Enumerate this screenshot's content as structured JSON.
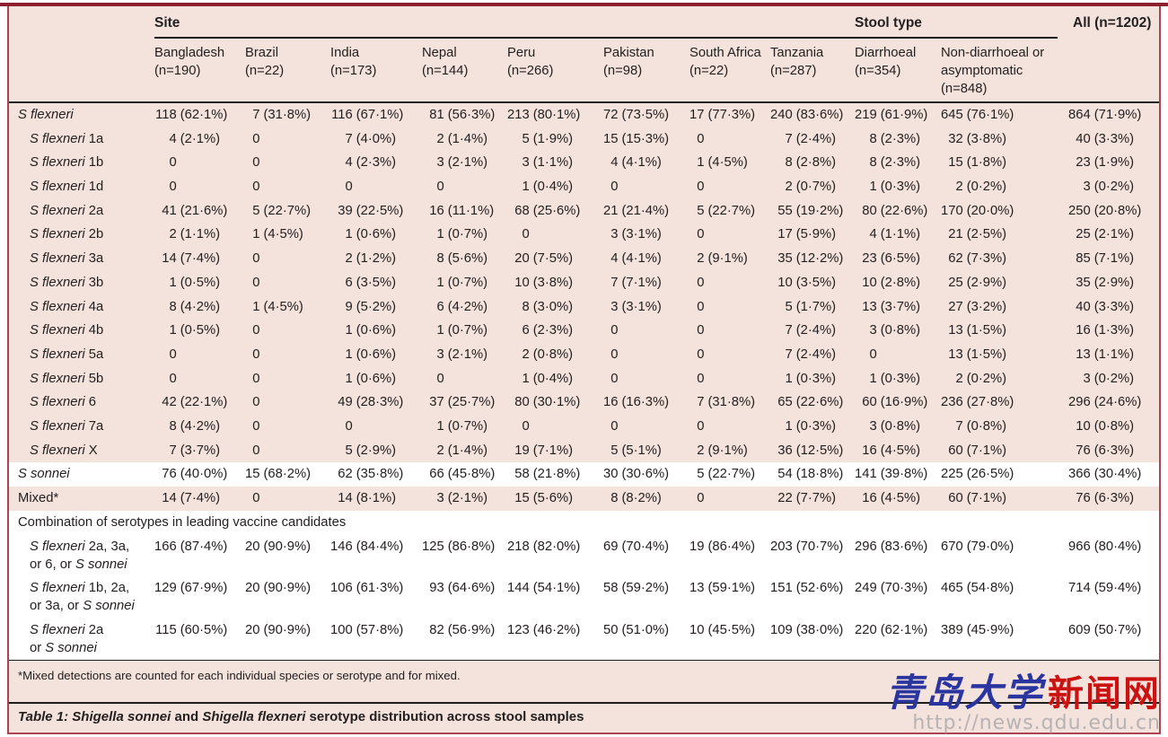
{
  "colors": {
    "panel_pink": "#f4e2dc",
    "frame_red": "#b04353",
    "top_rule_red": "#8e1f2f",
    "rule_black": "#1d1d1b",
    "highlight_white": "#ffffff",
    "watermark_blue": "#2b35a0",
    "watermark_red": "#cc1111",
    "watermark_gray": "#b7b2b4"
  },
  "header": {
    "site": "Site",
    "stool": "Stool type",
    "all": "All (n=1202)"
  },
  "columns": [
    {
      "name": "Bangladesh",
      "n": "(n=190)"
    },
    {
      "name": "Brazil",
      "n": "(n=22)"
    },
    {
      "name": "India",
      "n": "(n=173)"
    },
    {
      "name": "Nepal",
      "n": "(n=144)"
    },
    {
      "name": "Peru",
      "n": "(n=266)"
    },
    {
      "name": "Pakistan",
      "n": "(n=98)"
    },
    {
      "name": "South Africa",
      "n": "(n=22)"
    },
    {
      "name": "Tanzania",
      "n": "(n=287)"
    },
    {
      "name": "Diarrhoeal",
      "n": "(n=354)"
    },
    {
      "name": "Non-diarrhoeal or asymptomatic",
      "n": "(n=848)"
    }
  ],
  "rows": [
    {
      "type": "data",
      "bg": "pink",
      "indent": 0,
      "lines": [
        [
          [
            "S flexneri",
            true
          ]
        ]
      ],
      "cells": [
        "118 (62·1%)",
        "7 (31·8%)",
        "116 (67·1%)",
        "81 (56·3%)",
        "213 (80·1%)",
        "72 (73·5%)",
        "17 (77·3%)",
        "240 (83·6%)",
        "219 (61·9%)",
        "645 (76·1%)",
        "864 (71·9%)"
      ]
    },
    {
      "type": "data",
      "bg": "pink",
      "indent": 1,
      "lines": [
        [
          [
            "S flexneri",
            true
          ],
          [
            " 1a",
            false
          ]
        ]
      ],
      "cells": [
        "4 (2·1%)",
        "0",
        "7 (4·0%)",
        "2 (1·4%)",
        "5 (1·9%)",
        "15 (15·3%)",
        "0",
        "7 (2·4%)",
        "8 (2·3%)",
        "32 (3·8%)",
        "40 (3·3%)"
      ]
    },
    {
      "type": "data",
      "bg": "pink",
      "indent": 1,
      "lines": [
        [
          [
            "S flexneri",
            true
          ],
          [
            " 1b",
            false
          ]
        ]
      ],
      "cells": [
        "0",
        "0",
        "4 (2·3%)",
        "3 (2·1%)",
        "3 (1·1%)",
        "4 (4·1%)",
        "1 (4·5%)",
        "8 (2·8%)",
        "8 (2·3%)",
        "15 (1·8%)",
        "23 (1·9%)"
      ]
    },
    {
      "type": "data",
      "bg": "pink",
      "indent": 1,
      "lines": [
        [
          [
            "S flexneri",
            true
          ],
          [
            " 1d",
            false
          ]
        ]
      ],
      "cells": [
        "0",
        "0",
        "0",
        "0",
        "1 (0·4%)",
        "0",
        "0",
        "2 (0·7%)",
        "1 (0·3%)",
        "2 (0·2%)",
        "3 (0·2%)"
      ]
    },
    {
      "type": "data",
      "bg": "pink",
      "indent": 1,
      "lines": [
        [
          [
            "S flexneri",
            true
          ],
          [
            " 2a",
            false
          ]
        ]
      ],
      "cells": [
        "41 (21·6%)",
        "5 (22·7%)",
        "39 (22·5%)",
        "16 (11·1%)",
        "68 (25·6%)",
        "21 (21·4%)",
        "5 (22·7%)",
        "55 (19·2%)",
        "80 (22·6%)",
        "170 (20·0%)",
        "250 (20·8%)"
      ]
    },
    {
      "type": "data",
      "bg": "pink",
      "indent": 1,
      "lines": [
        [
          [
            "S flexneri",
            true
          ],
          [
            " 2b",
            false
          ]
        ]
      ],
      "cells": [
        "2 (1·1%)",
        "1 (4·5%)",
        "1 (0·6%)",
        "1 (0·7%)",
        "0",
        "3 (3·1%)",
        "0",
        "17 (5·9%)",
        "4 (1·1%)",
        "21 (2·5%)",
        "25 (2·1%)"
      ]
    },
    {
      "type": "data",
      "bg": "pink",
      "indent": 1,
      "lines": [
        [
          [
            "S flexneri",
            true
          ],
          [
            " 3a",
            false
          ]
        ]
      ],
      "cells": [
        "14 (7·4%)",
        "0",
        "2 (1·2%)",
        "8 (5·6%)",
        "20 (7·5%)",
        "4 (4·1%)",
        "2 (9·1%)",
        "35 (12·2%)",
        "23 (6·5%)",
        "62 (7·3%)",
        "85 (7·1%)"
      ]
    },
    {
      "type": "data",
      "bg": "pink",
      "indent": 1,
      "lines": [
        [
          [
            "S flexneri",
            true
          ],
          [
            " 3b",
            false
          ]
        ]
      ],
      "cells": [
        "1 (0·5%)",
        "0",
        "6 (3·5%)",
        "1 (0·7%)",
        "10 (3·8%)",
        "7 (7·1%)",
        "0",
        "10 (3·5%)",
        "10 (2·8%)",
        "25 (2·9%)",
        "35 (2·9%)"
      ]
    },
    {
      "type": "data",
      "bg": "pink",
      "indent": 1,
      "lines": [
        [
          [
            "S flexneri",
            true
          ],
          [
            " 4a",
            false
          ]
        ]
      ],
      "cells": [
        "8 (4·2%)",
        "1 (4·5%)",
        "9 (5·2%)",
        "6 (4·2%)",
        "8 (3·0%)",
        "3 (3·1%)",
        "0",
        "5 (1·7%)",
        "13 (3·7%)",
        "27 (3·2%)",
        "40 (3·3%)"
      ]
    },
    {
      "type": "data",
      "bg": "pink",
      "indent": 1,
      "lines": [
        [
          [
            "S flexneri",
            true
          ],
          [
            " 4b",
            false
          ]
        ]
      ],
      "cells": [
        "1 (0·5%)",
        "0",
        "1 (0·6%)",
        "1 (0·7%)",
        "6 (2·3%)",
        "0",
        "0",
        "7 (2·4%)",
        "3 (0·8%)",
        "13 (1·5%)",
        "16 (1·3%)"
      ]
    },
    {
      "type": "data",
      "bg": "pink",
      "indent": 1,
      "lines": [
        [
          [
            "S flexneri",
            true
          ],
          [
            " 5a",
            false
          ]
        ]
      ],
      "cells": [
        "0",
        "0",
        "1 (0·6%)",
        "3 (2·1%)",
        "2 (0·8%)",
        "0",
        "0",
        "7 (2·4%)",
        "0",
        "13 (1·5%)",
        "13 (1·1%)"
      ]
    },
    {
      "type": "data",
      "bg": "pink",
      "indent": 1,
      "lines": [
        [
          [
            "S flexneri",
            true
          ],
          [
            " 5b",
            false
          ]
        ]
      ],
      "cells": [
        "0",
        "0",
        "1 (0·6%)",
        "0",
        "1 (0·4%)",
        "0",
        "0",
        "1 (0·3%)",
        "1 (0·3%)",
        "2 (0·2%)",
        "3 (0·2%)"
      ]
    },
    {
      "type": "data",
      "bg": "pink",
      "indent": 1,
      "lines": [
        [
          [
            "S flexneri",
            true
          ],
          [
            " 6",
            false
          ]
        ]
      ],
      "cells": [
        "42 (22·1%)",
        "0",
        "49 (28·3%)",
        "37 (25·7%)",
        "80 (30·1%)",
        "16 (16·3%)",
        "7 (31·8%)",
        "65 (22·6%)",
        "60 (16·9%)",
        "236 (27·8%)",
        "296 (24·6%)"
      ]
    },
    {
      "type": "data",
      "bg": "pink",
      "indent": 1,
      "lines": [
        [
          [
            "S flexneri",
            true
          ],
          [
            " 7a",
            false
          ]
        ]
      ],
      "cells": [
        "8 (4·2%)",
        "0",
        "0",
        "1 (0·7%)",
        "0",
        "0",
        "0",
        "1 (0·3%)",
        "3 (0·8%)",
        "7 (0·8%)",
        "10 (0·8%)"
      ]
    },
    {
      "type": "data",
      "bg": "pink",
      "indent": 1,
      "lines": [
        [
          [
            "S flexneri",
            true
          ],
          [
            " X",
            false
          ]
        ]
      ],
      "cells": [
        "7 (3·7%)",
        "0",
        "5 (2·9%)",
        "2 (1·4%)",
        "19 (7·1%)",
        "5 (5·1%)",
        "2 (9·1%)",
        "36 (12·5%)",
        "16 (4·5%)",
        "60 (7·1%)",
        "76 (6·3%)"
      ]
    },
    {
      "type": "data",
      "bg": "white",
      "indent": 0,
      "lines": [
        [
          [
            "S sonnei",
            true
          ]
        ]
      ],
      "cells": [
        "76 (40·0%)",
        "15 (68·2%)",
        "62 (35·8%)",
        "66 (45·8%)",
        "58 (21·8%)",
        "30 (30·6%)",
        "5 (22·7%)",
        "54 (18·8%)",
        "141 (39·8%)",
        "225 (26·5%)",
        "366 (30·4%)"
      ]
    },
    {
      "type": "data",
      "bg": "pink",
      "indent": 0,
      "lines": [
        [
          [
            "Mixed*",
            false
          ]
        ]
      ],
      "cells": [
        "14 (7·4%)",
        "0",
        "14 (8·1%)",
        "3 (2·1%)",
        "15 (5·6%)",
        "8 (8·2%)",
        "0",
        "22 (7·7%)",
        "16 (4·5%)",
        "60 (7·1%)",
        "76 (6·3%)"
      ]
    },
    {
      "type": "section",
      "bg": "white",
      "indent": 0,
      "lines": [
        [
          [
            "Combination of serotypes in leading vaccine candidates",
            false
          ]
        ]
      ],
      "cells": null
    },
    {
      "type": "data",
      "bg": "white",
      "indent": 1,
      "lines": [
        [
          [
            "S flexneri",
            true
          ],
          [
            " 2a, 3a,",
            false
          ]
        ],
        [
          [
            "or 6, or ",
            false
          ],
          [
            "S sonnei",
            true
          ]
        ]
      ],
      "cells": [
        "166 (87·4%)",
        "20 (90·9%)",
        "146 (84·4%)",
        "125 (86·8%)",
        "218 (82·0%)",
        "69 (70·4%)",
        "19 (86·4%)",
        "203 (70·7%)",
        "296 (83·6%)",
        "670 (79·0%)",
        "966 (80·4%)"
      ]
    },
    {
      "type": "data",
      "bg": "white",
      "indent": 1,
      "lines": [
        [
          [
            "S flexneri",
            true
          ],
          [
            " 1b, 2a,",
            false
          ]
        ],
        [
          [
            "or 3a, or ",
            false
          ],
          [
            "S sonnei",
            true
          ]
        ]
      ],
      "cells": [
        "129 (67·9%)",
        "20 (90·9%)",
        "106 (61·3%)",
        "93 (64·6%)",
        "144 (54·1%)",
        "58 (59·2%)",
        "13 (59·1%)",
        "151 (52·6%)",
        "249 (70·3%)",
        "465 (54·8%)",
        "714 (59·4%)"
      ]
    },
    {
      "type": "data",
      "bg": "white",
      "indent": 1,
      "lines": [
        [
          [
            "S flexneri",
            true
          ],
          [
            " 2a",
            false
          ]
        ],
        [
          [
            "or ",
            false
          ],
          [
            "S sonnei",
            true
          ]
        ]
      ],
      "cells": [
        "115 (60·5%)",
        "20 (90·9%)",
        "100 (57·8%)",
        "82 (56·9%)",
        "123 (46·2%)",
        "50 (51·0%)",
        "10 (45·5%)",
        "109 (38·0%)",
        "220 (62·1%)",
        "389 (45·9%)",
        "609 (50·7%)"
      ]
    }
  ],
  "footnote": "*Mixed detections are counted for each individual species or serotype and for mixed.",
  "caption": [
    [
      "Table 1: ",
      true
    ],
    [
      "Shigella sonnei",
      true
    ],
    [
      " and ",
      false
    ],
    [
      "Shigella flexneri",
      true
    ],
    [
      " serotype distribution across stool samples",
      false
    ]
  ],
  "watermark": {
    "blue": "青岛大学",
    "red": "新闻网",
    "url": "http://news.qdu.edu.cn"
  }
}
